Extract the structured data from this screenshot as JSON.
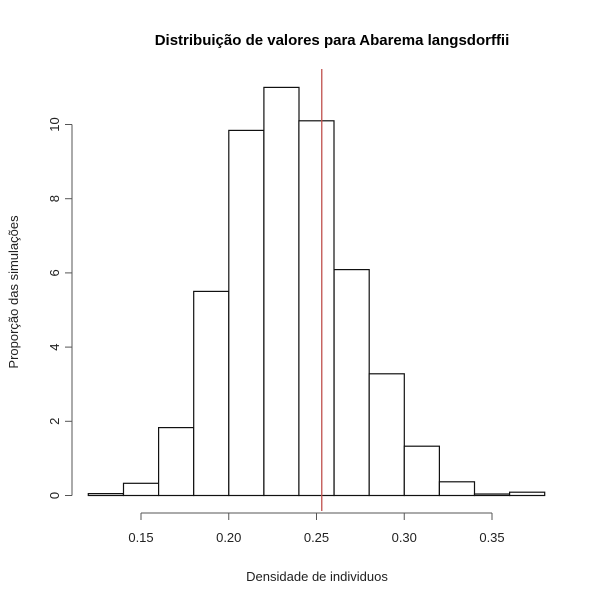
{
  "chart_data": {
    "type": "bar",
    "subtype": "histogram",
    "title": "Distribuição de valores para Abarema langsdorffii",
    "xlabel": "Densidade de individuos",
    "ylabel": "Proporção das simulações",
    "bin_width": 0.02,
    "bins": [
      {
        "start": 0.12,
        "end": 0.14,
        "value": 0.05
      },
      {
        "start": 0.14,
        "end": 0.16,
        "value": 0.33
      },
      {
        "start": 0.16,
        "end": 0.18,
        "value": 1.83
      },
      {
        "start": 0.18,
        "end": 0.2,
        "value": 5.5
      },
      {
        "start": 0.2,
        "end": 0.22,
        "value": 9.84
      },
      {
        "start": 0.22,
        "end": 0.24,
        "value": 11.0
      },
      {
        "start": 0.24,
        "end": 0.26,
        "value": 10.1
      },
      {
        "start": 0.26,
        "end": 0.28,
        "value": 6.09
      },
      {
        "start": 0.28,
        "end": 0.3,
        "value": 3.28
      },
      {
        "start": 0.3,
        "end": 0.32,
        "value": 1.33
      },
      {
        "start": 0.32,
        "end": 0.34,
        "value": 0.37
      },
      {
        "start": 0.34,
        "end": 0.36,
        "value": 0.04
      },
      {
        "start": 0.36,
        "end": 0.38,
        "value": 0.09
      }
    ],
    "categories": [
      "0.12-0.14",
      "0.14-0.16",
      "0.16-0.18",
      "0.18-0.20",
      "0.20-0.22",
      "0.22-0.24",
      "0.24-0.26",
      "0.26-0.28",
      "0.28-0.30",
      "0.30-0.32",
      "0.32-0.34",
      "0.34-0.36",
      "0.36-0.38"
    ],
    "values": [
      0.05,
      0.33,
      1.83,
      5.5,
      9.84,
      11.0,
      10.1,
      6.09,
      3.28,
      1.33,
      0.37,
      0.04,
      0.09
    ],
    "x_ticks": [
      0.15,
      0.2,
      0.25,
      0.3,
      0.35
    ],
    "x_tick_labels": [
      "0.15",
      "0.20",
      "0.25",
      "0.30",
      "0.35"
    ],
    "y_ticks": [
      0,
      2,
      4,
      6,
      8,
      10
    ],
    "y_tick_labels": [
      "0",
      "2",
      "4",
      "6",
      "8",
      "10"
    ],
    "xlim": [
      0.12,
      0.38
    ],
    "ylim": [
      0,
      11.5
    ],
    "grid": false,
    "legend": null,
    "annotations": [
      {
        "type": "vline",
        "x": 0.253,
        "color": "#c0504d"
      }
    ]
  }
}
